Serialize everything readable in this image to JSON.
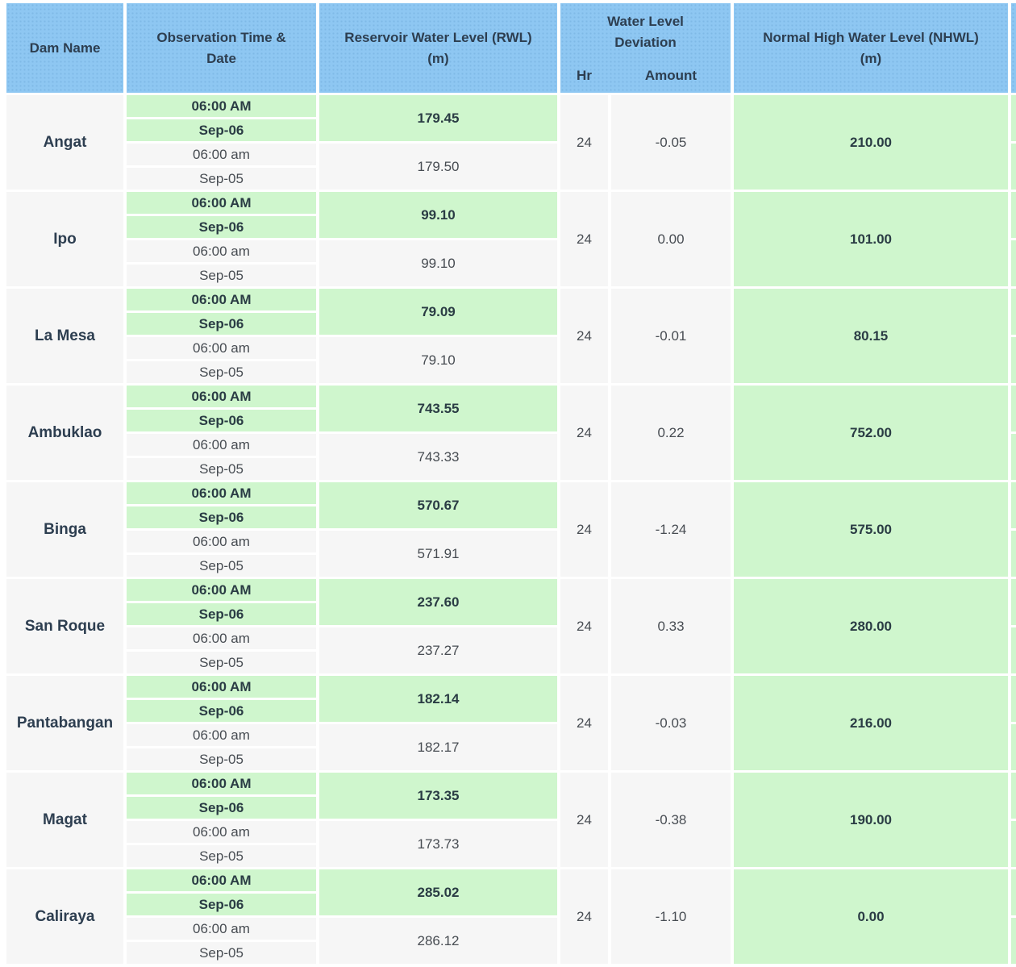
{
  "header": {
    "dam": "Dam Name",
    "observation": "Observation Time & Date",
    "rwl_line1": "Reservoir Water Level (RWL)",
    "rwl_line2": "(m)",
    "deviation_group": "Water Level Deviation",
    "deviation_hr": "Hr",
    "deviation_amount": "Amount",
    "nhwl_line1": "Normal High Water Level (NHWL)",
    "nhwl_line2": "(m)"
  },
  "colors": {
    "header_bg": "#8ec7f2",
    "header_dot": "#7fb9e6",
    "highlight_green": "#cff6cd",
    "cell_grey": "#f6f6f6",
    "text_dark": "#2d3e50",
    "text_bold_green": "#2a3c44",
    "text_muted": "#474c52"
  },
  "rows": [
    {
      "dam": "Angat",
      "obs_time_current": "06:00 AM",
      "obs_date_current": "Sep-06",
      "obs_time_prev": "06:00 am",
      "obs_date_prev": "Sep-05",
      "rwl_current": "179.45",
      "rwl_previous": "179.50",
      "deviation_hr": "24",
      "deviation_amount": "-0.05",
      "nhwl": "210.00"
    },
    {
      "dam": "Ipo",
      "obs_time_current": "06:00 AM",
      "obs_date_current": "Sep-06",
      "obs_time_prev": "06:00 am",
      "obs_date_prev": "Sep-05",
      "rwl_current": "99.10",
      "rwl_previous": "99.10",
      "deviation_hr": "24",
      "deviation_amount": "0.00",
      "nhwl": "101.00"
    },
    {
      "dam": "La Mesa",
      "obs_time_current": "06:00 AM",
      "obs_date_current": "Sep-06",
      "obs_time_prev": "06:00 am",
      "obs_date_prev": "Sep-05",
      "rwl_current": "79.09",
      "rwl_previous": "79.10",
      "deviation_hr": "24",
      "deviation_amount": "-0.01",
      "nhwl": "80.15"
    },
    {
      "dam": "Ambuklao",
      "obs_time_current": "06:00 AM",
      "obs_date_current": "Sep-06",
      "obs_time_prev": "06:00 am",
      "obs_date_prev": "Sep-05",
      "rwl_current": "743.55",
      "rwl_previous": "743.33",
      "deviation_hr": "24",
      "deviation_amount": "0.22",
      "nhwl": "752.00"
    },
    {
      "dam": "Binga",
      "obs_time_current": "06:00 AM",
      "obs_date_current": "Sep-06",
      "obs_time_prev": "06:00 am",
      "obs_date_prev": "Sep-05",
      "rwl_current": "570.67",
      "rwl_previous": "571.91",
      "deviation_hr": "24",
      "deviation_amount": "-1.24",
      "nhwl": "575.00"
    },
    {
      "dam": "San Roque",
      "obs_time_current": "06:00 AM",
      "obs_date_current": "Sep-06",
      "obs_time_prev": "06:00 am",
      "obs_date_prev": "Sep-05",
      "rwl_current": "237.60",
      "rwl_previous": "237.27",
      "deviation_hr": "24",
      "deviation_amount": "0.33",
      "nhwl": "280.00"
    },
    {
      "dam": "Pantabangan",
      "obs_time_current": "06:00 AM",
      "obs_date_current": "Sep-06",
      "obs_time_prev": "06:00 am",
      "obs_date_prev": "Sep-05",
      "rwl_current": "182.14",
      "rwl_previous": "182.17",
      "deviation_hr": "24",
      "deviation_amount": "-0.03",
      "nhwl": "216.00"
    },
    {
      "dam": "Magat",
      "obs_time_current": "06:00 AM",
      "obs_date_current": "Sep-06",
      "obs_time_prev": "06:00 am",
      "obs_date_prev": "Sep-05",
      "rwl_current": "173.35",
      "rwl_previous": "173.73",
      "deviation_hr": "24",
      "deviation_amount": "-0.38",
      "nhwl": "190.00"
    },
    {
      "dam": "Caliraya",
      "obs_time_current": "06:00 AM",
      "obs_date_current": "Sep-06",
      "obs_time_prev": "06:00 am",
      "obs_date_prev": "Sep-05",
      "rwl_current": "285.02",
      "rwl_previous": "286.12",
      "deviation_hr": "24",
      "deviation_amount": "-1.10",
      "nhwl": "0.00"
    }
  ]
}
